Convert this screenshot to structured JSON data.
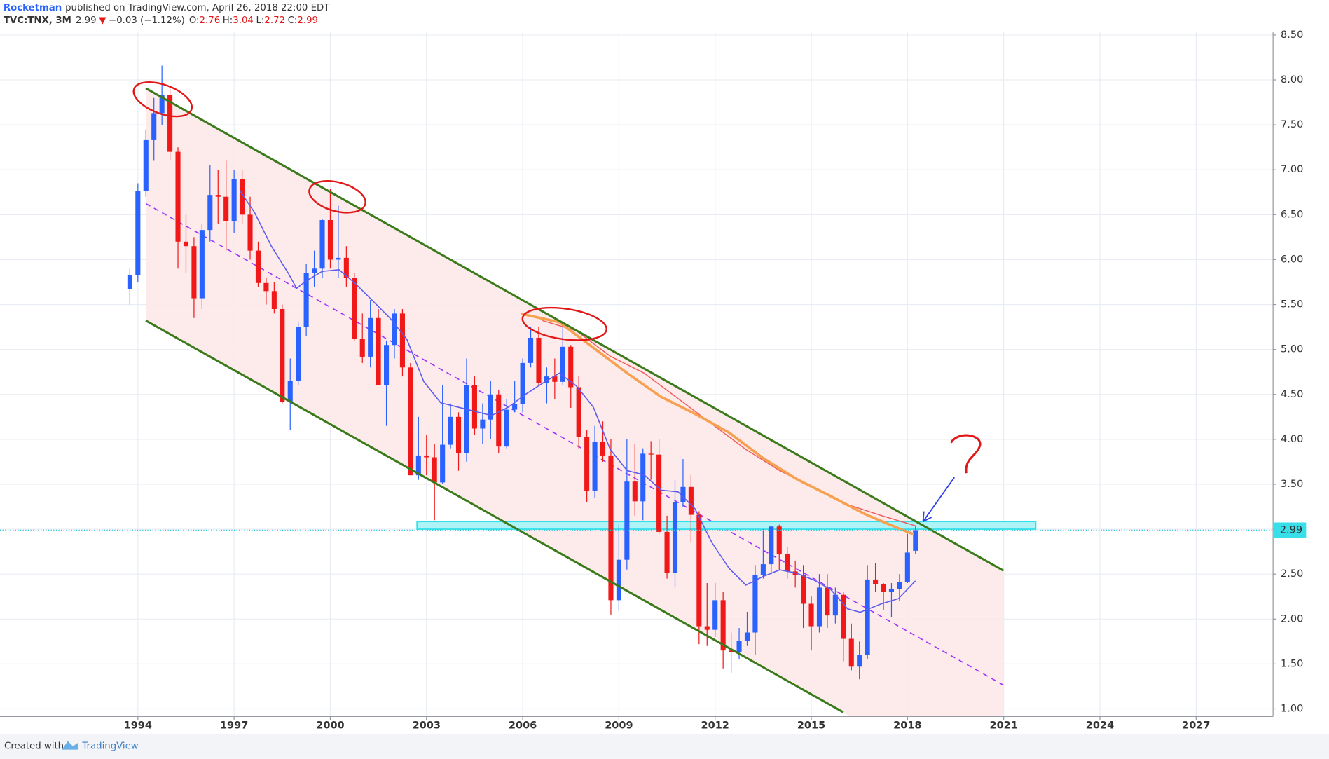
{
  "header": {
    "author": "Rocketman",
    "published": "published on TradingView.com, April 26, 2018 22:00 EDT",
    "symbol": "TVC:TNX, 3M",
    "price": "2.99",
    "arrow": "▼",
    "change": "−0.03 (−1.12%)",
    "o_label": "O:",
    "o": "2.76",
    "h_label": "H:",
    "h": "3.04",
    "l_label": "L:",
    "l": "2.72",
    "c_label": "C:",
    "c": "2.99"
  },
  "footer": {
    "created": "Created with",
    "brand": "TradingView"
  },
  "chart_data": {
    "type": "candlestick",
    "up_color": "#2962ff",
    "down_color": "#f01818",
    "grid": true,
    "last_price": 2.99,
    "xlim": [
      1989.7,
      2029.4
    ],
    "xticks": [
      1994,
      1997,
      2000,
      2003,
      2006,
      2009,
      2012,
      2015,
      2018,
      2021,
      2024,
      2027
    ],
    "ylim": [
      0.915,
      8.53
    ],
    "yticks": [
      {
        "value": 1,
        "label": "1.00"
      },
      {
        "value": 1.5,
        "label": "1.50"
      },
      {
        "value": 2,
        "label": "2.00"
      },
      {
        "value": 2.5,
        "label": "2.50"
      },
      {
        "value": 3,
        "label": "3.00"
      },
      {
        "value": 3.5,
        "label": "3.50"
      },
      {
        "value": 4,
        "label": "4.00"
      },
      {
        "value": 4.5,
        "label": "4.50"
      },
      {
        "value": 5,
        "label": "5.00"
      },
      {
        "value": 5.5,
        "label": "5.50"
      },
      {
        "value": 6,
        "label": "6.00"
      },
      {
        "value": 6.5,
        "label": "6.50"
      },
      {
        "value": 7,
        "label": "7.00"
      },
      {
        "value": 7.5,
        "label": "7.50"
      },
      {
        "value": 8,
        "label": "8.00"
      },
      {
        "value": 8.5,
        "label": "8.50"
      }
    ],
    "x": [
      1993.75,
      1994,
      1994.25,
      1994.5,
      1994.75,
      1995,
      1995.25,
      1995.5,
      1995.75,
      1996,
      1996.25,
      1996.5,
      1996.75,
      1997,
      1997.25,
      1997.5,
      1997.75,
      1998,
      1998.25,
      1998.5,
      1998.75,
      1999,
      1999.25,
      1999.5,
      1999.75,
      2000,
      2000.25,
      2000.5,
      2000.75,
      2001,
      2001.25,
      2001.5,
      2001.75,
      2002,
      2002.25,
      2002.5,
      2002.75,
      2003,
      2003.25,
      2003.5,
      2003.75,
      2004,
      2004.25,
      2004.5,
      2004.75,
      2005,
      2005.25,
      2005.5,
      2005.75,
      2006,
      2006.25,
      2006.5,
      2006.75,
      2007,
      2007.25,
      2007.5,
      2007.75,
      2008,
      2008.25,
      2008.5,
      2008.75,
      2009,
      2009.25,
      2009.5,
      2009.75,
      2010,
      2010.25,
      2010.5,
      2010.75,
      2011,
      2011.25,
      2011.5,
      2011.75,
      2012,
      2012.25,
      2012.5,
      2012.75,
      2013,
      2013.25,
      2013.5,
      2013.75,
      2014,
      2014.25,
      2014.5,
      2014.75,
      2015,
      2015.25,
      2015.5,
      2015.75,
      2016,
      2016.25,
      2016.5,
      2016.75,
      2017,
      2017.25,
      2017.5,
      2017.75,
      2018,
      2018.25
    ],
    "ohlc": [
      [
        5.67,
        5.9,
        5.5,
        5.83
      ],
      [
        5.83,
        6.85,
        5.75,
        6.76
      ],
      [
        6.76,
        7.45,
        6.7,
        7.33
      ],
      [
        7.33,
        7.8,
        7.1,
        7.63
      ],
      [
        7.63,
        8.16,
        7.5,
        7.83
      ],
      [
        7.83,
        7.9,
        7.1,
        7.2
      ],
      [
        7.2,
        7.25,
        5.9,
        6.2
      ],
      [
        6.2,
        6.5,
        5.85,
        6.15
      ],
      [
        6.15,
        6.25,
        5.35,
        5.57
      ],
      [
        5.57,
        6.4,
        5.45,
        6.33
      ],
      [
        6.33,
        7.05,
        6.2,
        6.72
      ],
      [
        6.72,
        7.0,
        6.4,
        6.7
      ],
      [
        6.7,
        7.1,
        6.1,
        6.43
      ],
      [
        6.43,
        7.0,
        6.3,
        6.9
      ],
      [
        6.9,
        7.0,
        6.4,
        6.5
      ],
      [
        6.5,
        6.7,
        6.0,
        6.1
      ],
      [
        6.1,
        6.2,
        5.7,
        5.74
      ],
      [
        5.74,
        5.8,
        5.5,
        5.65
      ],
      [
        5.65,
        5.75,
        5.4,
        5.45
      ],
      [
        5.45,
        5.5,
        4.4,
        4.42
      ],
      [
        4.42,
        4.9,
        4.1,
        4.65
      ],
      [
        4.65,
        5.3,
        4.6,
        5.25
      ],
      [
        5.25,
        5.95,
        5.15,
        5.85
      ],
      [
        5.85,
        6.1,
        5.7,
        5.9
      ],
      [
        5.9,
        6.45,
        5.8,
        6.44
      ],
      [
        6.44,
        6.79,
        5.9,
        6.0
      ],
      [
        6.0,
        6.6,
        5.8,
        6.02
      ],
      [
        6.02,
        6.15,
        5.7,
        5.8
      ],
      [
        5.8,
        5.85,
        5.1,
        5.12
      ],
      [
        5.12,
        5.4,
        4.85,
        4.92
      ],
      [
        4.92,
        5.55,
        4.8,
        5.35
      ],
      [
        5.35,
        5.45,
        4.6,
        4.6
      ],
      [
        4.6,
        5.1,
        4.15,
        5.05
      ],
      [
        5.05,
        5.45,
        4.9,
        5.4
      ],
      [
        5.4,
        5.45,
        4.7,
        4.8
      ],
      [
        4.8,
        4.85,
        3.6,
        3.6
      ],
      [
        3.6,
        4.25,
        3.55,
        3.82
      ],
      [
        3.82,
        4.05,
        3.6,
        3.8
      ],
      [
        3.8,
        3.95,
        3.1,
        3.52
      ],
      [
        3.52,
        4.6,
        3.5,
        3.94
      ],
      [
        3.94,
        4.4,
        3.9,
        4.25
      ],
      [
        4.25,
        4.3,
        3.65,
        3.85
      ],
      [
        3.85,
        4.9,
        3.75,
        4.6
      ],
      [
        4.6,
        4.7,
        4.05,
        4.12
      ],
      [
        4.12,
        4.4,
        3.95,
        4.22
      ],
      [
        4.22,
        4.65,
        4.0,
        4.5
      ],
      [
        4.5,
        4.55,
        3.85,
        3.92
      ],
      [
        3.92,
        4.45,
        3.9,
        4.33
      ],
      [
        4.33,
        4.65,
        4.3,
        4.39
      ],
      [
        4.39,
        4.9,
        4.3,
        4.85
      ],
      [
        4.85,
        5.25,
        4.8,
        5.13
      ],
      [
        5.13,
        5.25,
        4.6,
        4.63
      ],
      [
        4.63,
        4.8,
        4.4,
        4.7
      ],
      [
        4.7,
        4.9,
        4.45,
        4.64
      ],
      [
        4.64,
        5.3,
        4.6,
        5.03
      ],
      [
        5.03,
        5.05,
        4.35,
        4.58
      ],
      [
        4.58,
        4.7,
        3.9,
        4.03
      ],
      [
        4.03,
        4.1,
        3.3,
        3.43
      ],
      [
        3.43,
        4.15,
        3.35,
        3.97
      ],
      [
        3.97,
        4.2,
        3.75,
        3.82
      ],
      [
        3.82,
        4.0,
        2.05,
        2.21
      ],
      [
        2.21,
        3.05,
        2.1,
        2.66
      ],
      [
        2.66,
        4.0,
        2.55,
        3.53
      ],
      [
        3.53,
        3.95,
        3.15,
        3.31
      ],
      [
        3.31,
        3.9,
        3.1,
        3.84
      ],
      [
        3.84,
        3.98,
        3.55,
        3.83
      ],
      [
        3.83,
        4.0,
        2.95,
        2.97
      ],
      [
        2.97,
        3.15,
        2.45,
        2.51
      ],
      [
        2.51,
        3.55,
        2.35,
        3.3
      ],
      [
        3.3,
        3.78,
        3.25,
        3.47
      ],
      [
        3.47,
        3.6,
        2.85,
        3.16
      ],
      [
        3.16,
        3.2,
        1.72,
        1.92
      ],
      [
        1.92,
        2.4,
        1.7,
        1.88
      ],
      [
        1.88,
        2.4,
        1.8,
        2.21
      ],
      [
        2.21,
        2.3,
        1.45,
        1.65
      ],
      [
        1.65,
        1.85,
        1.4,
        1.63
      ],
      [
        1.63,
        1.9,
        1.55,
        1.76
      ],
      [
        1.76,
        2.08,
        1.7,
        1.85
      ],
      [
        1.85,
        2.6,
        1.6,
        2.49
      ],
      [
        2.49,
        3.0,
        2.45,
        2.61
      ],
      [
        2.61,
        3.04,
        2.5,
        3.03
      ],
      [
        3.03,
        3.05,
        2.55,
        2.72
      ],
      [
        2.72,
        2.8,
        2.45,
        2.53
      ],
      [
        2.53,
        2.65,
        2.35,
        2.49
      ],
      [
        2.49,
        2.6,
        1.9,
        2.17
      ],
      [
        2.17,
        2.25,
        1.65,
        1.92
      ],
      [
        1.92,
        2.5,
        1.85,
        2.35
      ],
      [
        2.35,
        2.5,
        1.9,
        2.04
      ],
      [
        2.04,
        2.35,
        1.95,
        2.27
      ],
      [
        2.27,
        2.3,
        1.53,
        1.78
      ],
      [
        1.78,
        1.95,
        1.43,
        1.47
      ],
      [
        1.47,
        1.75,
        1.33,
        1.6
      ],
      [
        1.6,
        2.6,
        1.55,
        2.44
      ],
      [
        2.44,
        2.62,
        2.3,
        2.39
      ],
      [
        2.39,
        2.4,
        2.1,
        2.3
      ],
      [
        2.3,
        2.4,
        2.02,
        2.33
      ],
      [
        2.33,
        2.5,
        2.2,
        2.41
      ],
      [
        2.41,
        2.95,
        2.4,
        2.74
      ],
      [
        2.76,
        3.04,
        2.72,
        2.99
      ]
    ]
  }
}
